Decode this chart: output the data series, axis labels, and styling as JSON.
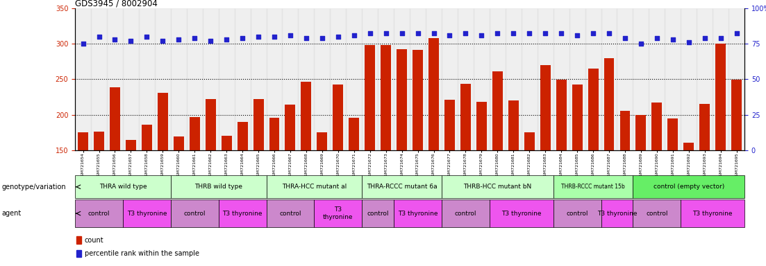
{
  "title": "GDS3945 / 8002904",
  "samples": [
    "GSM721654",
    "GSM721655",
    "GSM721656",
    "GSM721657",
    "GSM721658",
    "GSM721659",
    "GSM721660",
    "GSM721661",
    "GSM721662",
    "GSM721663",
    "GSM721664",
    "GSM721665",
    "GSM721666",
    "GSM721667",
    "GSM721668",
    "GSM721669",
    "GSM721670",
    "GSM721671",
    "GSM721672",
    "GSM721673",
    "GSM721674",
    "GSM721675",
    "GSM721676",
    "GSM721677",
    "GSM721678",
    "GSM721679",
    "GSM721680",
    "GSM721681",
    "GSM721682",
    "GSM721683",
    "GSM721684",
    "GSM721685",
    "GSM721686",
    "GSM721687",
    "GSM721688",
    "GSM721689",
    "GSM721690",
    "GSM721691",
    "GSM721692",
    "GSM721693",
    "GSM721694",
    "GSM721695"
  ],
  "bar_values": [
    175,
    176,
    239,
    165,
    186,
    231,
    169,
    197,
    222,
    170,
    190,
    222,
    196,
    214,
    246,
    175,
    242,
    196,
    298,
    298,
    292,
    291,
    308,
    221,
    243,
    218,
    261,
    220,
    175,
    270,
    249,
    242,
    265,
    279,
    205,
    200,
    217,
    195,
    161,
    215,
    300,
    249
  ],
  "dot_values_pct": [
    75,
    80,
    78,
    77,
    80,
    77,
    78,
    79,
    77,
    78,
    79,
    80,
    80,
    81,
    79,
    79,
    80,
    81,
    82,
    82,
    82,
    82,
    82,
    81,
    82,
    81,
    82,
    82,
    82,
    82,
    82,
    81,
    82,
    82,
    79,
    75,
    79,
    78,
    76,
    79,
    79,
    82
  ],
  "ylim_left": [
    150,
    350
  ],
  "ylim_right": [
    0,
    100
  ],
  "yticks_left": [
    150,
    200,
    250,
    300,
    350
  ],
  "yticks_right": [
    0,
    25,
    50,
    75,
    100
  ],
  "bar_color": "#cc2200",
  "dot_color": "#2222cc",
  "genotype_groups": [
    {
      "label": "THRA wild type",
      "start": 0,
      "end": 6,
      "color": "#ccffcc"
    },
    {
      "label": "THRB wild type",
      "start": 6,
      "end": 12,
      "color": "#ccffcc"
    },
    {
      "label": "THRA-HCC mutant al",
      "start": 12,
      "end": 18,
      "color": "#ccffcc"
    },
    {
      "label": "THRA-RCCC mutant 6a",
      "start": 18,
      "end": 23,
      "color": "#ccffcc"
    },
    {
      "label": "THRB-HCC mutant bN",
      "start": 23,
      "end": 30,
      "color": "#ccffcc"
    },
    {
      "label": "THRB-RCCC mutant 15b",
      "start": 30,
      "end": 35,
      "color": "#aaffaa"
    },
    {
      "label": "control (empty vector)",
      "start": 35,
      "end": 42,
      "color": "#66ee66"
    }
  ],
  "agent_groups": [
    {
      "label": "control",
      "start": 0,
      "end": 3,
      "type": "control"
    },
    {
      "label": "T3 thyronine",
      "start": 3,
      "end": 6,
      "type": "t3"
    },
    {
      "label": "control",
      "start": 6,
      "end": 9,
      "type": "control"
    },
    {
      "label": "T3 thyronine",
      "start": 9,
      "end": 12,
      "type": "t3"
    },
    {
      "label": "control",
      "start": 12,
      "end": 15,
      "type": "control"
    },
    {
      "label": "T3\nthyronine",
      "start": 15,
      "end": 18,
      "type": "t3"
    },
    {
      "label": "control",
      "start": 18,
      "end": 20,
      "type": "control"
    },
    {
      "label": "T3 thyronine",
      "start": 20,
      "end": 23,
      "type": "t3"
    },
    {
      "label": "control",
      "start": 23,
      "end": 26,
      "type": "control"
    },
    {
      "label": "T3 thyronine",
      "start": 26,
      "end": 30,
      "type": "t3"
    },
    {
      "label": "control",
      "start": 30,
      "end": 33,
      "type": "control"
    },
    {
      "label": "T3 thyronine",
      "start": 33,
      "end": 35,
      "type": "t3"
    },
    {
      "label": "control",
      "start": 35,
      "end": 38,
      "type": "control"
    },
    {
      "label": "T3 thyronine",
      "start": 38,
      "end": 42,
      "type": "t3"
    }
  ],
  "control_color": "#cc88cc",
  "t3_color": "#ee55ee",
  "legend_count_label": "count",
  "legend_pct_label": "percentile rank within the sample",
  "left_label_geno": "genotype/variation",
  "left_label_agent": "agent"
}
